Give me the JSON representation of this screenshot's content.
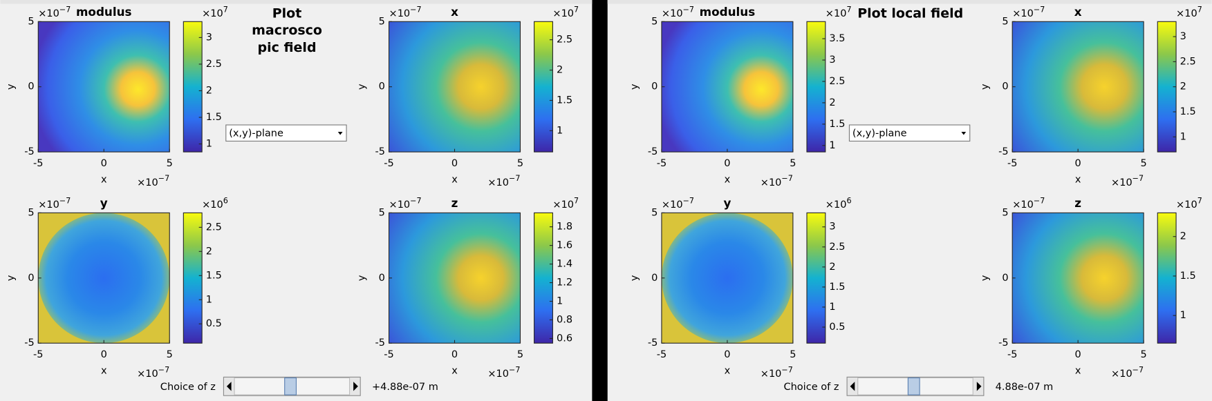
{
  "panels": [
    {
      "title_lines": [
        "Plot",
        "macrosco",
        "pic field"
      ],
      "dropdown": "(x,y)-plane",
      "slider_label": "Choice of z",
      "slider_value": "+4.88e-07  m",
      "plots": [
        {
          "title": "modulus",
          "xlabel": "x",
          "ylabel": "y",
          "xlim": [
            -5,
            5
          ],
          "ylim": [
            -5,
            5
          ],
          "xticks": [
            -5,
            0,
            5
          ],
          "yticks": [
            -5,
            0,
            5
          ],
          "x_multiplier": {
            "base": "×10",
            "exp": "−7"
          },
          "y_multiplier": {
            "base": "×10",
            "exp": "−7"
          },
          "colorbar": {
            "multiplier": {
              "base": "×10",
              "exp": "7"
            },
            "clim": [
              0.85,
              3.3
            ],
            "ticks": [
              1,
              1.5,
              2,
              2.5,
              3
            ]
          }
        },
        {
          "title": "x",
          "xlabel": "x",
          "ylabel": "y",
          "xlim": [
            -5,
            5
          ],
          "ylim": [
            -5,
            5
          ],
          "xticks": [
            -5,
            0,
            5
          ],
          "yticks": [
            -5,
            0,
            5
          ],
          "x_multiplier": {
            "base": "×10",
            "exp": "−7"
          },
          "y_multiplier": {
            "base": "×10",
            "exp": "−7"
          },
          "colorbar": {
            "multiplier": {
              "base": "×10",
              "exp": "7"
            },
            "clim": [
              0.65,
              2.8
            ],
            "ticks": [
              1,
              1.5,
              2,
              2.5
            ]
          }
        },
        {
          "title": "y",
          "xlabel": "x",
          "ylabel": "y",
          "xlim": [
            -5,
            5
          ],
          "ylim": [
            -5,
            5
          ],
          "xticks": [
            -5,
            0,
            5
          ],
          "yticks": [
            -5,
            0,
            5
          ],
          "x_multiplier": {
            "base": "×10",
            "exp": "−7"
          },
          "y_multiplier": {
            "base": "×10",
            "exp": "−7"
          },
          "colorbar": {
            "multiplier": {
              "base": "×10",
              "exp": "6"
            },
            "clim": [
              0.1,
              2.8
            ],
            "ticks": [
              0.5,
              1,
              1.5,
              2,
              2.5
            ]
          }
        },
        {
          "title": "z",
          "xlabel": "x",
          "ylabel": "y",
          "xlim": [
            -5,
            5
          ],
          "ylim": [
            -5,
            5
          ],
          "xticks": [
            -5,
            0,
            5
          ],
          "yticks": [
            -5,
            0,
            5
          ],
          "x_multiplier": {
            "base": "×10",
            "exp": "−7"
          },
          "y_multiplier": {
            "base": "×10",
            "exp": "−7"
          },
          "colorbar": {
            "multiplier": {
              "base": "×10",
              "exp": "7"
            },
            "clim": [
              0.55,
              1.95
            ],
            "ticks": [
              0.6,
              0.8,
              1,
              1.2,
              1.4,
              1.6,
              1.8
            ]
          }
        }
      ]
    },
    {
      "title_lines": [
        "Plot local field"
      ],
      "dropdown": "(x,y)-plane",
      "slider_label": "Choice of z",
      "slider_value": "4.88e-07  m",
      "plots": [
        {
          "title": "modulus",
          "xlabel": "x",
          "ylabel": "y",
          "xlim": [
            -5,
            5
          ],
          "ylim": [
            -5,
            5
          ],
          "xticks": [
            -5,
            0,
            5
          ],
          "yticks": [
            -5,
            0,
            5
          ],
          "x_multiplier": {
            "base": "×10",
            "exp": "−7"
          },
          "y_multiplier": {
            "base": "×10",
            "exp": "−7"
          },
          "colorbar": {
            "multiplier": {
              "base": "×10",
              "exp": "7"
            },
            "clim": [
              0.85,
              3.9
            ],
            "ticks": [
              1,
              1.5,
              2,
              2.5,
              3,
              3.5
            ]
          }
        },
        {
          "title": "x",
          "xlabel": "x",
          "ylabel": "y",
          "xlim": [
            -5,
            5
          ],
          "ylim": [
            -5,
            5
          ],
          "xticks": [
            -5,
            0,
            5
          ],
          "yticks": [
            -5,
            0,
            5
          ],
          "x_multiplier": {
            "base": "×10",
            "exp": "−7"
          },
          "y_multiplier": {
            "base": "×10",
            "exp": "−7"
          },
          "colorbar": {
            "multiplier": {
              "base": "×10",
              "exp": "7"
            },
            "clim": [
              0.7,
              3.3
            ],
            "ticks": [
              1,
              1.5,
              2,
              2.5,
              3
            ]
          }
        },
        {
          "title": "y",
          "xlabel": "x",
          "ylabel": "y",
          "xlim": [
            -5,
            5
          ],
          "ylim": [
            -5,
            5
          ],
          "xticks": [
            -5,
            0,
            5
          ],
          "yticks": [
            -5,
            0,
            5
          ],
          "x_multiplier": {
            "base": "×10",
            "exp": "−7"
          },
          "y_multiplier": {
            "base": "×10",
            "exp": "−7"
          },
          "colorbar": {
            "multiplier": {
              "base": "×10",
              "exp": "6"
            },
            "clim": [
              0.1,
              3.35
            ],
            "ticks": [
              0.5,
              1,
              1.5,
              2,
              2.5,
              3
            ]
          }
        },
        {
          "title": "z",
          "xlabel": "x",
          "ylabel": "y",
          "xlim": [
            -5,
            5
          ],
          "ylim": [
            -5,
            5
          ],
          "xticks": [
            -5,
            0,
            5
          ],
          "yticks": [
            -5,
            0,
            5
          ],
          "x_multiplier": {
            "base": "×10",
            "exp": "−7"
          },
          "y_multiplier": {
            "base": "×10",
            "exp": "−7"
          },
          "colorbar": {
            "multiplier": {
              "base": "×10",
              "exp": "7"
            },
            "clim": [
              0.65,
              2.3
            ],
            "ticks": [
              1,
              1.5,
              2
            ]
          }
        }
      ]
    }
  ]
}
